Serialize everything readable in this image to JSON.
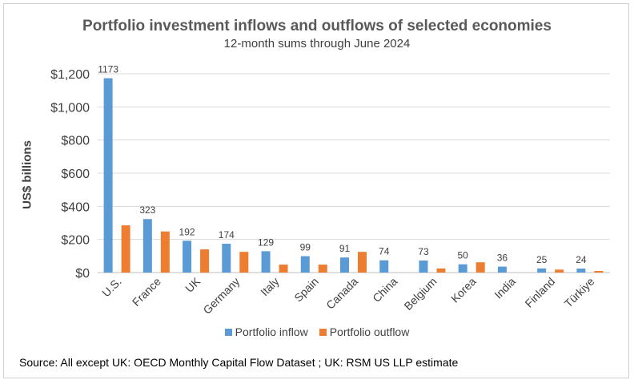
{
  "chart_data": {
    "type": "bar",
    "title": "Portfolio investment inflows and outflows of selected economies",
    "subtitle": "12-month sums through June 2024",
    "ylabel": "US$ billions",
    "xlabel": "",
    "ylim": [
      0,
      1200
    ],
    "yticks": [
      "$0",
      "$200",
      "$400",
      "$600",
      "$800",
      "$1,000",
      "$1,200"
    ],
    "ytick_values": [
      0,
      200,
      400,
      600,
      800,
      1000,
      1200
    ],
    "grid": true,
    "legend_position": "bottom",
    "categories": [
      "U.S.",
      "France",
      "UK",
      "Germany",
      "Italy",
      "Spain",
      "Canada",
      "China",
      "Belgium",
      "Korea",
      "India",
      "Finland",
      "Türkiye"
    ],
    "series": [
      {
        "name": "Portfolio inflow",
        "color": "#5b9bd5",
        "values": [
          1173,
          323,
          192,
          174,
          129,
          99,
          91,
          74,
          73,
          50,
          36,
          25,
          24
        ],
        "labels": [
          "1173",
          "323",
          "192",
          "174",
          "129",
          "99",
          "91",
          "74",
          "73",
          "50",
          "36",
          "25",
          "24"
        ]
      },
      {
        "name": "Portfolio outflow",
        "color": "#ed7d31",
        "values": [
          285,
          248,
          140,
          125,
          48,
          48,
          125,
          0,
          25,
          62,
          0,
          18,
          10
        ]
      }
    ]
  },
  "footer": {
    "source": "Source: All except UK: OECD Monthly Capital Flow Dataset ; UK: RSM US LLP estimate"
  }
}
